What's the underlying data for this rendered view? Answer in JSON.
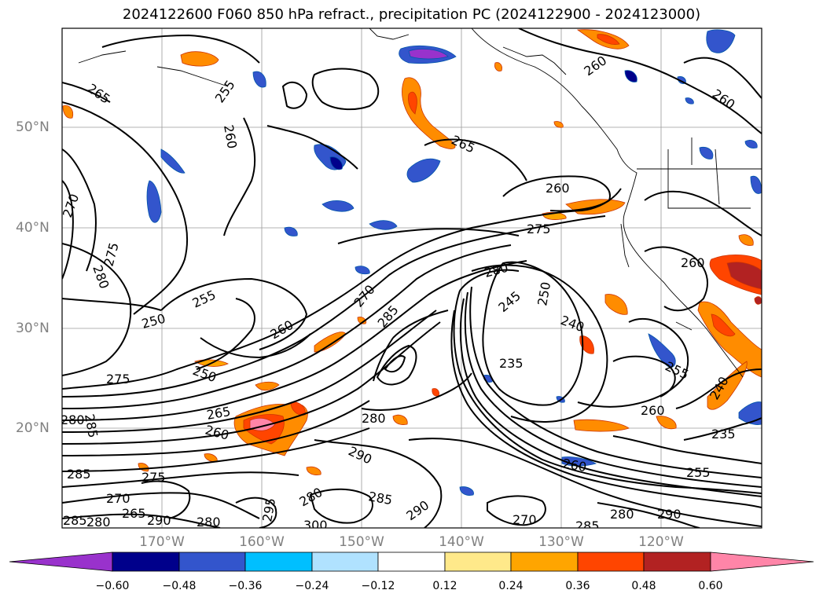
{
  "title": "2024122600 F060 850 hPa refract., precipitation PC (2024122900 - 2024123000)",
  "lat_labels": [
    "50°N",
    "40°N",
    "30°N",
    "20°N"
  ],
  "lon_labels": [
    "170°W",
    "160°W",
    "150°W",
    "140°W",
    "130°W",
    "120°W"
  ],
  "contour_labels": [
    "265",
    "255",
    "260",
    "265",
    "260",
    "260",
    "270",
    "275",
    "280",
    "260",
    "275",
    "280",
    "270",
    "285",
    "250",
    "255",
    "260",
    "275",
    "250",
    "265",
    "280",
    "285",
    "280",
    "245",
    "250",
    "240",
    "235",
    "260",
    "255",
    "260",
    "240",
    "235",
    "260",
    "255",
    "290",
    "285",
    "275",
    "270",
    "265",
    "290",
    "280",
    "295",
    "280",
    "300",
    "285",
    "290",
    "270",
    "285",
    "280",
    "290",
    "285",
    "280",
    "260"
  ],
  "colorbar": {
    "ticks": [
      "−0.60",
      "−0.48",
      "−0.36",
      "−0.24",
      "−0.12",
      "0.12",
      "0.24",
      "0.36",
      "0.48",
      "0.60"
    ],
    "colors": [
      "#9932cc",
      "#00008b",
      "#3355cc",
      "#00bfff",
      "#b0e2ff",
      "#ffffff",
      "#ffe98a",
      "#ffa500",
      "#ff4500",
      "#b22222",
      "#ff85a8"
    ]
  }
}
